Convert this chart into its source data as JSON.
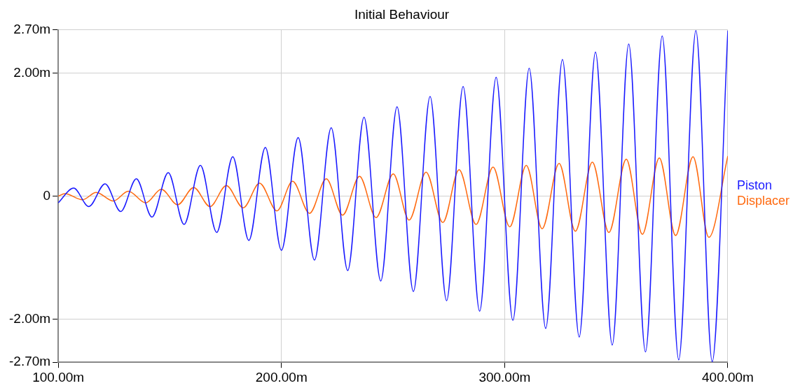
{
  "chart_data": {
    "type": "line",
    "title": "Initial Behaviour",
    "xlim": [
      100,
      400
    ],
    "xticks": [
      {
        "value": 100,
        "label": "100.00m"
      },
      {
        "value": 200,
        "label": "200.00m"
      },
      {
        "value": 300,
        "label": "300.00m"
      },
      {
        "value": 400,
        "label": "400.00m"
      }
    ],
    "ylim": [
      -2.7,
      2.7
    ],
    "yticks": [
      {
        "value": -2.7,
        "label": "-2.70m"
      },
      {
        "value": -2,
        "label": "-2.00m"
      },
      0,
      {
        "value": 2,
        "label": "2.00m"
      },
      {
        "value": 2.7,
        "label": "2.70m"
      }
    ],
    "grid": true,
    "legend": "right",
    "series": [
      {
        "name": "Piston",
        "color": "#1a1aff",
        "x": [
          100,
          106.9,
          113.7,
          121.0,
          128.0,
          135.0,
          142.0,
          149.3,
          156.4,
          163.7,
          171.0,
          178.2,
          185.4,
          192.8,
          200.0,
          207.5,
          214.8,
          222.3,
          229.7,
          237.0,
          244.5,
          251.8,
          259.1,
          266.6,
          274.0,
          281.4,
          288.8,
          296.2,
          303.7,
          311.0,
          318.4,
          325.9,
          333.4,
          340.7,
          348.2,
          355.6,
          363.1,
          370.6,
          378.0,
          385.7,
          393.0,
          400
        ],
        "values": [
          -0.11,
          0.13,
          -0.17,
          0.2,
          -0.25,
          0.28,
          -0.34,
          0.38,
          -0.46,
          0.5,
          -0.59,
          0.64,
          -0.72,
          0.79,
          -0.88,
          0.95,
          -1.04,
          1.11,
          -1.21,
          1.28,
          -1.38,
          1.45,
          -1.55,
          1.62,
          -1.7,
          1.78,
          -1.87,
          1.93,
          -2.02,
          2.08,
          -2.15,
          2.22,
          -2.29,
          2.34,
          -2.42,
          2.47,
          -2.53,
          2.6,
          -2.66,
          2.69,
          -2.69,
          2.69
        ]
      },
      {
        "name": "Displacer",
        "color": "#ff6a10",
        "x": [
          100,
          103.0,
          110.9,
          117.0,
          124.7,
          131.4,
          139.2,
          146.2,
          153.5,
          160.7,
          168.0,
          175.3,
          182.9,
          190.2,
          198.0,
          205.0,
          212.6,
          220.1,
          227.4,
          235.0,
          242.4,
          250.1,
          257.2,
          264.8,
          272.3,
          279.6,
          287.2,
          294.8,
          302.3,
          309.7,
          316.8,
          324.4,
          331.7,
          339.3,
          346.7,
          354.5,
          361.7,
          369.3,
          376.6,
          384.4,
          391.5,
          400
        ],
        "values": [
          0,
          0.04,
          -0.06,
          0.06,
          -0.08,
          0.08,
          -0.11,
          0.11,
          -0.14,
          0.14,
          -0.17,
          0.17,
          -0.19,
          0.21,
          -0.24,
          0.24,
          -0.28,
          0.28,
          -0.31,
          0.32,
          -0.35,
          0.36,
          -0.39,
          0.39,
          -0.43,
          0.43,
          -0.46,
          0.47,
          -0.5,
          0.5,
          -0.53,
          0.53,
          -0.57,
          0.55,
          -0.59,
          0.6,
          -0.62,
          0.62,
          -0.64,
          0.64,
          -0.67,
          0.65
        ]
      }
    ]
  }
}
